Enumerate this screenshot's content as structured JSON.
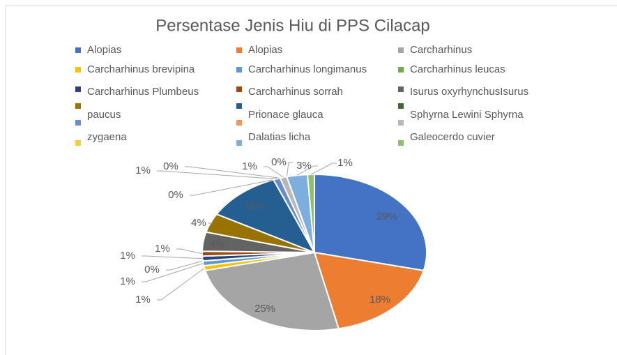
{
  "chart_data": {
    "type": "pie",
    "title": "Persentase Jenis Hiu di PPS Cilacap",
    "categories": [
      "Alopias",
      "Alopias",
      "Carcharhinus",
      "Carcharhinus brevipina",
      "Carcharhinus longimanus",
      "Carcharhinus leucas",
      "Carcharhinus Plumbeus",
      "Carcharhinus sorrah",
      "Isurus oxyrhynchusIsurus",
      "paucus",
      "Prionace glauca",
      "Sphyrna Lewini Sphyrna",
      null,
      null,
      null,
      "zygaena",
      "Dalatias licha",
      "Galeocerdo cuvier"
    ],
    "values": [
      29,
      18,
      25,
      1,
      1,
      0,
      1,
      1,
      4,
      4,
      11,
      0,
      1,
      0,
      1,
      0,
      3,
      1
    ],
    "value_labels": [
      "29%",
      "18%",
      "25%",
      "1%",
      "1%",
      "0%",
      "1%",
      "1%",
      "4%",
      "4%",
      "11%",
      "0%",
      "1%",
      "0%",
      "1%",
      "0%",
      "3%",
      "1%"
    ],
    "colors": [
      "#4472C4",
      "#ED7D31",
      "#A5A5A5",
      "#FFC000",
      "#5B9BD5",
      "#70AD47",
      "#264478",
      "#9E480E",
      "#636363",
      "#997300",
      "#255E91",
      "#43682B",
      "#698ED0",
      "#F1975A",
      "#B7B7B7",
      "#FFCD33",
      "#7CAFDD",
      "#8CC168"
    ],
    "legend": "top"
  }
}
